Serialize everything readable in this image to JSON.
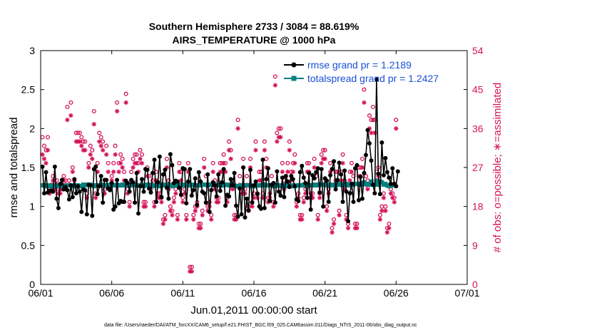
{
  "chart_data": {
    "type": "line",
    "title_line1": "Southern Hemisphere 2733 / 3084 = 88.619%",
    "title_line2": "AIRS_TEMPERATURE @ 1000 hPa",
    "xlabel": "Jun.01,2011 00:00:00 start",
    "ylabel_left": "rmse and totalspread",
    "ylabel_right": "# of obs: o=possible; ∗=assimilated",
    "footer": "data file: /Users/raeder/DAI/ATM_forcXX/CAM6_setup/f.e21.FHIST_BGC.f09_025.CAM6assim.011/Diags_NTrS_2011-06/obs_diag_output.nc",
    "xlim": [
      0,
      30
    ],
    "ylim_left": [
      0,
      3
    ],
    "ylim_right": [
      0,
      54
    ],
    "x_ticks": [
      0,
      5,
      10,
      15,
      20,
      25,
      30
    ],
    "x_tick_labels": [
      "06/01",
      "06/06",
      "06/11",
      "06/16",
      "06/21",
      "06/26",
      "07/01"
    ],
    "y_left_ticks": [
      0,
      0.5,
      1,
      1.5,
      2,
      2.5,
      3
    ],
    "y_left_tick_labels": [
      "0",
      "0.5",
      "1",
      "1.5",
      "2",
      "2.5",
      "3"
    ],
    "y_right_ticks": [
      0,
      9,
      18,
      27,
      36,
      45,
      54
    ],
    "y_right_tick_labels": [
      "0",
      "9",
      "18",
      "27",
      "36",
      "45",
      "54"
    ],
    "colors": {
      "rmse": "#000000",
      "spread": "#008080",
      "obs": "#d4145a",
      "legend_text": "#1a4fd6"
    },
    "series": [
      {
        "name": "rmse grand pr = 1.2189",
        "x_start": 0.125,
        "x_step": 0.125,
        "values": [
          1.51,
          1.17,
          1.44,
          1.18,
          1.2,
          1.2,
          1.19,
          1.51,
          1.1,
          0.98,
          1.29,
          1.34,
          1.22,
          1.25,
          1.21,
          1.09,
          1.27,
          1.12,
          1.35,
          1.17,
          1.26,
          1.19,
          0.93,
          1.22,
          1.21,
          0.9,
          1.28,
          1.27,
          0.88,
          1.48,
          1.51,
          1.16,
          1.26,
          1.39,
          1.05,
          1.34,
          1.34,
          1.23,
          1.21,
          1.3,
          0.96,
          1.0,
          1.34,
          1.04,
          1.07,
          1.06,
          1.06,
          1.33,
          1.3,
          1.19,
          1.34,
          1.31,
          1.05,
          1.43,
          0.91,
          1.26,
          1.35,
          1.19,
          1.48,
          1.47,
          1.23,
          1.18,
          1.43,
          1.6,
          1.06,
          1.31,
          1.64,
          1.12,
          1.41,
          1.47,
          1.24,
          1.1,
          1.67,
          1.53,
          1.3,
          1.33,
          1.32,
          1.24,
          1.15,
          1.49,
          1.48,
          1.04,
          1.32,
          1.48,
          1.14,
          1.21,
          1.36,
          1.02,
          1.44,
          1.32,
          1.19,
          1.17,
          1.05,
          1.41,
          0.93,
          1.21,
          1.31,
          1.27,
          1.13,
          1.41,
          1.2,
          1.31,
          1.48,
          1.01,
          1.15,
          1.13,
          1.35,
          1.27,
          1.43,
          1.01,
          0.87,
          1.23,
          0.9,
          1.5,
          0.86,
          1.1,
          0.95,
          1.47,
          1.05,
          1.27,
          1.32,
          1.16,
          1.0,
          0.97,
          1.6,
          0.98,
          1.35,
          1.49,
          1.07,
          1.28,
          1.3,
          1.05,
          1.45,
          1.19,
          1.14,
          1.37,
          1.12,
          1.39,
          1.32,
          1.25,
          1.39,
          1.35,
          1.26,
          1.09,
          1.07,
          1.44,
          1.52,
          1.37,
          1.3,
          1.11,
          1.43,
          0.96,
          1.4,
          1.36,
          1.44,
          1.49,
          1.18,
          1.48,
          1.0,
          1.36,
          1.33,
          1.06,
          1.4,
          1.48,
          1.58,
          1.22,
          1.34,
          1.56,
          1.41,
          1.06,
          1.46,
          1.19,
          0.81,
          1.17,
          1.29,
          1.06,
          1.49,
          1.53,
          1.08,
          1.38,
          1.1,
          1.43,
          1.66,
          1.98,
          1.81,
          1.59,
          1.28,
          1.17,
          2.63,
          1.42,
          1.16,
          1.82,
          1.4,
          1.62,
          1.44,
          1.37,
          1.29,
          1.49,
          1.29,
          1.26,
          1.45
        ],
        "marker": "filled-circle"
      },
      {
        "name": "totalspread grand pr = 1.2427",
        "x_start": 0.125,
        "x_step": 0.125,
        "values": [
          1.27,
          1.27,
          1.26,
          1.26,
          1.27,
          1.26,
          1.26,
          1.26,
          1.26,
          1.27,
          1.27,
          1.26,
          1.26,
          1.26,
          1.27,
          1.27,
          1.27,
          1.26,
          1.27,
          1.26,
          1.27,
          1.26,
          1.26,
          1.28,
          1.27,
          1.28,
          1.28,
          1.28,
          1.27,
          1.26,
          1.27,
          1.27,
          1.27,
          1.27,
          1.28,
          1.27,
          1.27,
          1.26,
          1.28,
          1.28,
          1.27,
          1.27,
          1.28,
          1.27,
          1.27,
          1.28,
          1.27,
          1.28,
          1.27,
          1.28,
          1.27,
          1.28,
          1.27,
          1.27,
          1.27,
          1.27,
          1.26,
          1.26,
          1.27,
          1.28,
          1.28,
          1.27,
          1.26,
          1.27,
          1.27,
          1.27,
          1.26,
          1.27,
          1.28,
          1.27,
          1.27,
          1.28,
          1.28,
          1.26,
          1.27,
          1.27,
          1.27,
          1.27,
          1.28,
          1.28,
          1.27,
          1.27,
          1.27,
          1.27,
          1.28,
          1.27,
          1.27,
          1.27,
          1.27,
          1.27,
          1.28,
          1.28,
          1.28,
          1.27,
          1.28,
          1.28,
          1.28,
          1.28,
          1.28,
          1.27,
          1.27,
          1.27,
          1.27,
          1.28,
          1.28,
          1.27,
          1.27,
          1.28,
          1.27,
          1.26,
          1.26,
          1.26,
          1.27,
          1.27,
          1.27,
          1.27,
          1.27,
          1.27,
          1.26,
          1.26,
          1.27,
          1.27,
          1.27,
          1.27,
          1.28,
          1.28,
          1.27,
          1.27,
          1.27,
          1.27,
          1.26,
          1.27,
          1.27,
          1.27,
          1.26,
          1.27,
          1.26,
          1.27,
          1.26,
          1.26,
          1.26,
          1.27,
          1.26,
          1.27,
          1.27,
          1.27,
          1.27,
          1.28,
          1.27,
          1.27,
          1.27,
          1.27,
          1.27,
          1.28,
          1.27,
          1.28,
          1.28,
          1.28,
          1.28,
          1.28,
          1.27,
          1.27,
          1.28,
          1.27,
          1.28,
          1.27,
          1.28,
          1.29,
          1.28,
          1.27,
          1.28,
          1.29,
          1.27,
          1.28,
          1.29,
          1.28,
          1.29,
          1.29,
          1.29,
          1.28,
          1.3,
          1.31,
          1.29,
          1.28,
          1.28,
          1.32,
          1.28,
          1.28,
          1.33,
          1.28,
          1.32,
          1.31,
          1.28,
          1.29,
          1.27,
          1.26,
          1.28,
          1.27
        ],
        "marker": "filled-square"
      },
      {
        "name": "# of obs possible",
        "axis": "right",
        "marker": "open-circle",
        "x_start": 0.125,
        "x_step": 0.125,
        "values": [
          34,
          32,
          31,
          34,
          22,
          23,
          25,
          23,
          24,
          22,
          22,
          23,
          25,
          24,
          41,
          24,
          42,
          27,
          24,
          35,
          35,
          35,
          34,
          33,
          33,
          21,
          28,
          32,
          31,
          40,
          21,
          28,
          35,
          34,
          33,
          22,
          32,
          28,
          23,
          25,
          28,
          32,
          42,
          28,
          30,
          29,
          26,
          44,
          22,
          19,
          26,
          29,
          30,
          30,
          28,
          31,
          30,
          19,
          19,
          27,
          25,
          23,
          24,
          19,
          26,
          21,
          21,
          20,
          15,
          16,
          29,
          24,
          18,
          17,
          20,
          22,
          16,
          28,
          26,
          20,
          22,
          16,
          28,
          4,
          4,
          16,
          18,
          19,
          14,
          14,
          17,
          29,
          25,
          18,
          19,
          16,
          28,
          24,
          20,
          20,
          28,
          28,
          30,
          28,
          20,
          33,
          31,
          24,
          16,
          16,
          38,
          25,
          22,
          29,
          22,
          25,
          18,
          29,
          19,
          21,
          33,
          21,
          26,
          26,
          21,
          33,
          29,
          20,
          21,
          25,
          19,
          48,
          35,
          36,
          36,
          28,
          24,
          25,
          28,
          33,
          26,
          28,
          30,
          19,
          21,
          16,
          16,
          20,
          22,
          28,
          28,
          21,
          21,
          29,
          25,
          16,
          21,
          30,
          31,
          31,
          18,
          22,
          28,
          13,
          15,
          26,
          26,
          17,
          26,
          30,
          24,
          16,
          14,
          26,
          28,
          25,
          14,
          14,
          27,
          27,
          29,
          45,
          25,
          24,
          39,
          38,
          41,
          38,
          26,
          27,
          16,
          18,
          21,
          18,
          13,
          14,
          22,
          21,
          20,
          38
        ],
        "note": "approximate"
      },
      {
        "name": "# of obs assimilated",
        "axis": "right",
        "marker": "asterisk",
        "x_start": 0.125,
        "x_step": 0.125,
        "values": [
          30,
          29,
          28,
          31,
          21,
          22,
          24,
          22,
          23,
          21,
          21,
          22,
          24,
          23,
          38,
          23,
          39,
          26,
          23,
          33,
          33,
          33,
          32,
          31,
          31,
          20,
          27,
          30,
          29,
          37,
          20,
          26,
          33,
          32,
          31,
          21,
          30,
          26,
          22,
          24,
          26,
          30,
          40,
          26,
          28,
          27,
          24,
          42,
          21,
          18,
          24,
          27,
          28,
          28,
          26,
          29,
          28,
          18,
          18,
          25,
          23,
          22,
          23,
          18,
          24,
          20,
          20,
          19,
          14,
          15,
          27,
          22,
          17,
          16,
          19,
          21,
          15,
          26,
          24,
          19,
          21,
          15,
          26,
          3,
          3,
          15,
          17,
          18,
          13,
          13,
          16,
          27,
          23,
          17,
          18,
          15,
          26,
          22,
          19,
          19,
          26,
          26,
          28,
          26,
          19,
          31,
          29,
          22,
          15,
          15,
          36,
          23,
          21,
          27,
          21,
          23,
          17,
          27,
          18,
          20,
          31,
          20,
          24,
          24,
          20,
          31,
          27,
          19,
          20,
          23,
          18,
          46,
          33,
          34,
          34,
          26,
          22,
          23,
          26,
          31,
          24,
          26,
          28,
          18,
          20,
          15,
          15,
          19,
          21,
          26,
          26,
          20,
          20,
          27,
          23,
          15,
          20,
          28,
          29,
          29,
          17,
          21,
          26,
          12,
          14,
          24,
          24,
          16,
          24,
          28,
          22,
          15,
          13,
          24,
          26,
          23,
          13,
          13,
          25,
          25,
          27,
          42,
          23,
          22,
          36,
          35,
          38,
          35,
          24,
          25,
          15,
          17,
          20,
          17,
          12,
          13,
          21,
          20,
          19,
          36
        ],
        "note": "approximate"
      }
    ],
    "legend_position": "top-right"
  }
}
